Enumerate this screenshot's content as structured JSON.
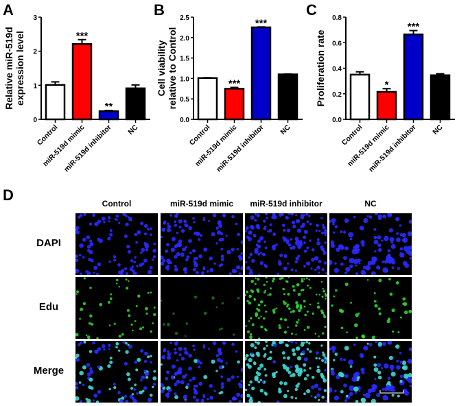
{
  "panels": {
    "A": {
      "letter": "A"
    },
    "B": {
      "letter": "B"
    },
    "C": {
      "letter": "C"
    },
    "D": {
      "letter": "D"
    }
  },
  "chart_data": [
    {
      "id": "A",
      "type": "bar",
      "title": "",
      "xlabel": "",
      "ylabel": "Relative miR-519d expression level",
      "ylabel_lines": [
        "Relative miR-519d",
        "expression level"
      ],
      "categories": [
        "Control",
        "miR-519d mimic",
        "miR-519d inhibitor",
        "NC"
      ],
      "values": [
        1.01,
        2.21,
        0.24,
        0.91
      ],
      "errors": [
        0.09,
        0.13,
        0.02,
        0.1
      ],
      "colors": [
        "#ffffff",
        "#ff0000",
        "#0000c8",
        "#000000"
      ],
      "significance": [
        "",
        "***",
        "**",
        ""
      ],
      "ylim": [
        0,
        3
      ],
      "yticks": [
        0,
        1,
        2,
        3
      ],
      "ytick_labels": [
        "0",
        "1",
        "2",
        "3"
      ],
      "grid": false
    },
    {
      "id": "B",
      "type": "bar",
      "title": "",
      "xlabel": "",
      "ylabel": "Cell viability relative to Control",
      "ylabel_lines": [
        "Cell viability",
        "relative to Control"
      ],
      "categories": [
        "Control",
        "miR-519d mimic",
        "miR-519d inhibitor",
        "NC"
      ],
      "values": [
        1.01,
        0.75,
        2.25,
        1.1
      ],
      "errors": [
        0.01,
        0.03,
        0.01,
        0.01
      ],
      "colors": [
        "#ffffff",
        "#ff0000",
        "#0000c8",
        "#000000"
      ],
      "significance": [
        "",
        "***",
        "***",
        ""
      ],
      "ylim": [
        0,
        2.5
      ],
      "yticks": [
        0,
        0.5,
        1.0,
        1.5,
        2.0,
        2.5
      ],
      "ytick_labels": [
        "0.0",
        "0.5",
        "1.0",
        "1.5",
        "2.0",
        "2.5"
      ],
      "grid": false
    },
    {
      "id": "C",
      "type": "bar",
      "title": "",
      "xlabel": "",
      "ylabel": "Proliferation rate",
      "ylabel_lines": [
        "Proliferation rate"
      ],
      "categories": [
        "Control",
        "miR-519d mimic",
        "miR-519d inhibitor",
        "NC"
      ],
      "values": [
        0.35,
        0.215,
        0.665,
        0.345
      ],
      "errors": [
        0.022,
        0.025,
        0.03,
        0.012
      ],
      "colors": [
        "#ffffff",
        "#ff0000",
        "#0000c8",
        "#000000"
      ],
      "significance": [
        "",
        "*",
        "***",
        ""
      ],
      "ylim": [
        0,
        0.8
      ],
      "yticks": [
        0,
        0.2,
        0.4,
        0.6,
        0.8
      ],
      "ytick_labels": [
        "0.0",
        "0.2",
        "0.4",
        "0.6",
        "0.8"
      ],
      "grid": false
    }
  ],
  "image_grid": {
    "columns": [
      "Control",
      "miR-519d mimic",
      "miR-519d inhibitor",
      "NC"
    ],
    "rows": [
      "DAPI",
      "Edu",
      "Merge"
    ],
    "row_channels": [
      "blue",
      "green",
      "merge"
    ],
    "edu_density": [
      0.45,
      0.12,
      0.9,
      0.35
    ],
    "scale_bar": {
      "visible": true,
      "column": 3,
      "row": 2
    }
  }
}
